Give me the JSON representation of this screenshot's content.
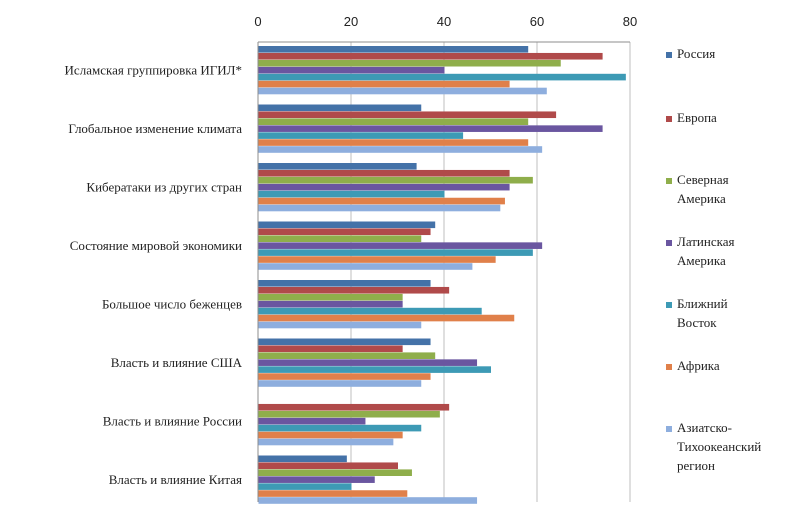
{
  "chart_data": {
    "type": "bar",
    "orientation": "horizontal",
    "title": "",
    "xlabel": "",
    "ylabel": "",
    "xlim": [
      0,
      80
    ],
    "ticks": [
      0,
      20,
      40,
      60,
      80
    ],
    "tick_labels": [
      "0",
      "20",
      "40",
      "60",
      "80"
    ],
    "grid": true,
    "legend_position": "right",
    "categories": [
      "Исламская группировка ИГИЛ*",
      "Глобальное изменение климата",
      "Кибератаки из других стран",
      "Состояние мировой экономики",
      "Большое число беженцев",
      "Власть и влияние США",
      "Власть и влияние России",
      "Власть и влияние Китая"
    ],
    "series": [
      {
        "name": "Россия",
        "color": "#4472a8",
        "values": [
          58,
          35,
          34,
          38,
          37,
          37,
          0,
          19
        ]
      },
      {
        "name": "Европа",
        "color": "#b04a4a",
        "values": [
          74,
          64,
          54,
          37,
          41,
          31,
          41,
          30
        ]
      },
      {
        "name": "Северная Америка",
        "color": "#8fae4b",
        "values": [
          65,
          58,
          59,
          35,
          31,
          38,
          39,
          33
        ]
      },
      {
        "name": "Латинская Америка",
        "color": "#6a56a0",
        "values": [
          40,
          74,
          54,
          61,
          31,
          47,
          23,
          25
        ]
      },
      {
        "name": "Ближний Восток",
        "color": "#3d9ab5",
        "values": [
          79,
          44,
          40,
          59,
          48,
          50,
          35,
          20
        ]
      },
      {
        "name": "Африка",
        "color": "#e0804a",
        "values": [
          54,
          58,
          53,
          51,
          55,
          37,
          31,
          32
        ]
      },
      {
        "name": "Азиатско-Тихоокеанский регион",
        "color": "#8eaede",
        "values": [
          62,
          61,
          52,
          46,
          35,
          35,
          29,
          47
        ]
      }
    ],
    "legend_lines": [
      [
        "Россия"
      ],
      [
        "Европа"
      ],
      [
        "Северная",
        "Америка"
      ],
      [
        "Латинская",
        "Америка"
      ],
      [
        "Ближний",
        "Восток"
      ],
      [
        "Африка"
      ],
      [
        "Азиатско-",
        "Тихоокеанский",
        "регион"
      ]
    ]
  }
}
